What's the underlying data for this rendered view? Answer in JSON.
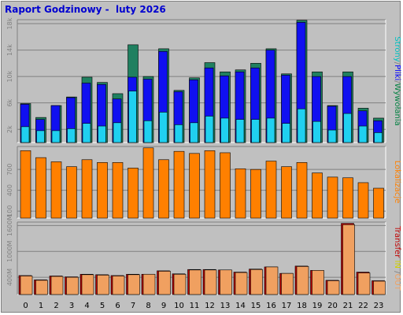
{
  "title": "Raport Godzinowy -  luty 2026",
  "right_labels": {
    "top": [
      {
        "text": "Strony",
        "color": "#00c0c0"
      },
      {
        "text": "/",
        "color": "#808080"
      },
      {
        "text": "Pliki",
        "color": "#0000ff"
      },
      {
        "text": "/",
        "color": "#808080"
      },
      {
        "text": "Wywołania",
        "color": "#008040"
      }
    ],
    "mid": [
      {
        "text": "Lokalizacje",
        "color": "#ff8000"
      }
    ],
    "bottom": [
      {
        "text": "Transfer",
        "color": "#c00000"
      },
      {
        "text": " IN",
        "color": "#d0d000"
      },
      {
        "text": " /",
        "color": "#808080"
      },
      {
        "text": "OUT",
        "color": "#f0a060"
      }
    ]
  },
  "chart_data": [
    {
      "type": "bar",
      "panel": "top",
      "x": [
        0,
        1,
        2,
        3,
        4,
        5,
        6,
        7,
        8,
        9,
        10,
        11,
        12,
        13,
        14,
        15,
        16,
        17,
        18,
        19,
        20,
        21,
        22,
        23
      ],
      "series": [
        {
          "name": "Wywołania",
          "color": "#208060",
          "values": [
            5900,
            3800,
            5600,
            6900,
            9900,
            9100,
            7400,
            14800,
            10000,
            14200,
            7900,
            9800,
            12100,
            10700,
            11000,
            12000,
            14200,
            10400,
            18500,
            10700,
            5600,
            10700,
            5200,
            3700
          ]
        },
        {
          "name": "Pliki",
          "color": "#1010f0",
          "values": [
            5800,
            3500,
            5600,
            6800,
            9000,
            8800,
            6600,
            9900,
            9600,
            13800,
            7700,
            9500,
            11300,
            10100,
            10700,
            11300,
            14000,
            10200,
            18200,
            10000,
            5500,
            10000,
            4800,
            3300
          ]
        },
        {
          "name": "Strony",
          "color": "#20d0f0",
          "values": [
            2400,
            1800,
            1800,
            2100,
            2900,
            2500,
            3000,
            7800,
            3300,
            4600,
            2700,
            3000,
            4000,
            3700,
            3500,
            3500,
            3700,
            2900,
            5100,
            3200,
            1900,
            4400,
            2500,
            1500
          ]
        }
      ],
      "ylim": [
        0,
        18600
      ],
      "yticks": [
        {
          "label": "2k",
          "value": 2000
        },
        {
          "label": "6k",
          "value": 6000
        },
        {
          "label": "10k",
          "value": 10000
        },
        {
          "label": "14k",
          "value": 14000
        },
        {
          "label": "18k",
          "value": 18000
        }
      ]
    },
    {
      "type": "bar",
      "panel": "middle",
      "x": [
        0,
        1,
        2,
        3,
        4,
        5,
        6,
        7,
        8,
        9,
        10,
        11,
        12,
        13,
        14,
        15,
        16,
        17,
        18,
        19,
        20,
        21,
        22,
        23
      ],
      "series": [
        {
          "name": "Lokalizacje",
          "color": "#ff8000",
          "values": [
            970,
            870,
            810,
            740,
            840,
            800,
            800,
            720,
            1010,
            840,
            960,
            930,
            970,
            940,
            710,
            700,
            820,
            740,
            800,
            650,
            590,
            580,
            510,
            430
          ]
        }
      ],
      "ylim": [
        0,
        1030
      ],
      "yticks": [
        {
          "label": "100",
          "value": 100
        },
        {
          "label": "400",
          "value": 400
        },
        {
          "label": "700",
          "value": 700
        }
      ]
    },
    {
      "type": "bar",
      "panel": "bottom",
      "x": [
        0,
        1,
        2,
        3,
        4,
        5,
        6,
        7,
        8,
        9,
        10,
        11,
        12,
        13,
        14,
        15,
        16,
        17,
        18,
        19,
        20,
        21,
        22,
        23
      ],
      "series": [
        {
          "name": "IN",
          "color": "#c00000",
          "values": [
            440,
            340,
            430,
            410,
            470,
            460,
            440,
            470,
            470,
            550,
            480,
            580,
            580,
            570,
            520,
            590,
            640,
            490,
            660,
            560,
            330,
            1650,
            520,
            320
          ]
        },
        {
          "name": "OUT",
          "color": "#f0a060",
          "values": [
            430,
            330,
            420,
            400,
            460,
            450,
            430,
            460,
            470,
            540,
            470,
            570,
            570,
            570,
            510,
            580,
            640,
            490,
            650,
            560,
            320,
            1620,
            500,
            310
          ]
        }
      ],
      "ylim": [
        0,
        1680
      ],
      "yticks": [
        {
          "label": "400M",
          "value": 400
        },
        {
          "label": "1000M",
          "value": 1000
        },
        {
          "label": "1600M",
          "value": 1600
        }
      ]
    }
  ]
}
